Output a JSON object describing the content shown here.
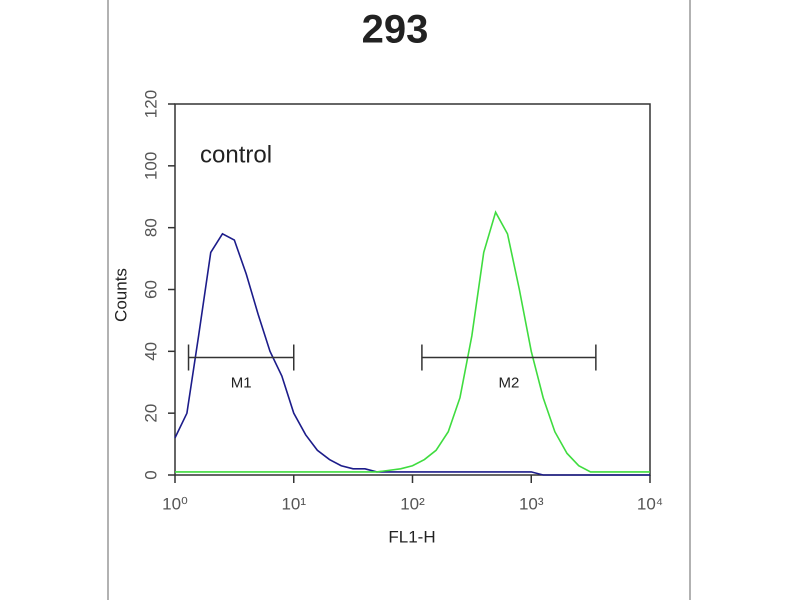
{
  "chart_data": {
    "type": "line",
    "title": "293",
    "x_label": "FL1-H",
    "y_label": "Counts",
    "annotation": "control",
    "xscale": "log",
    "xlim": [
      1,
      10000
    ],
    "ylim": [
      0,
      120
    ],
    "xticks": [
      {
        "value": 1,
        "label": "10⁰"
      },
      {
        "value": 10,
        "label": "10¹"
      },
      {
        "value": 100,
        "label": "10²"
      },
      {
        "value": 1000,
        "label": "10³"
      },
      {
        "value": 10000,
        "label": "10⁴"
      }
    ],
    "yticks": [
      0,
      20,
      40,
      60,
      80,
      100,
      120
    ],
    "x": [
      1,
      1.26,
      1.58,
      2,
      2.51,
      3.16,
      3.98,
      5.01,
      6.31,
      7.94,
      10,
      12.6,
      15.8,
      20,
      25.1,
      31.6,
      39.8,
      50.1,
      63.1,
      79.4,
      100,
      126,
      158,
      200,
      251,
      316,
      398,
      501,
      631,
      794,
      1000,
      1260,
      1580,
      2000,
      2510,
      3160,
      3980,
      5010,
      6310,
      7940,
      10000
    ],
    "series": [
      {
        "color": "#1c1c8a",
        "values": [
          12,
          20,
          45,
          72,
          78,
          76,
          65,
          52,
          40,
          32,
          20,
          13,
          8,
          5,
          3,
          2,
          2,
          1,
          1,
          1,
          1,
          1,
          1,
          1,
          1,
          1,
          1,
          1,
          1,
          1,
          1,
          0,
          0,
          0,
          0,
          0,
          0,
          0,
          0,
          0,
          0
        ]
      },
      {
        "color": "#3fdc3f",
        "values": [
          1,
          1,
          1,
          1,
          1,
          1,
          1,
          1,
          1,
          1,
          1,
          1,
          1,
          1,
          1,
          1,
          1,
          1,
          1.5,
          2,
          3,
          5,
          8,
          14,
          25,
          45,
          72,
          85,
          78,
          60,
          40,
          25,
          14,
          7,
          3,
          1,
          1,
          1,
          1,
          1,
          1
        ]
      }
    ],
    "markers": [
      {
        "label": "M1",
        "x": [
          1.3,
          10
        ],
        "y": 38
      },
      {
        "label": "M2",
        "x": [
          120,
          3500
        ],
        "y": 38
      }
    ]
  }
}
